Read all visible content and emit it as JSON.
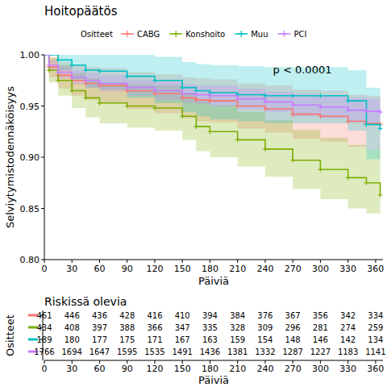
{
  "chart_data": {
    "type": "survival",
    "title": "Hoitopäätös",
    "legend_title": "Ositteet",
    "legend": "top",
    "annotation": "p < 0.0001",
    "xlabel": "Päiviä",
    "ylabel": "Selviytymistodennäköisyys",
    "x": [
      0,
      5,
      15,
      30,
      45,
      60,
      90,
      120,
      150,
      165,
      180,
      210,
      240,
      270,
      300,
      330,
      350,
      365
    ],
    "xlim": [
      0,
      368
    ],
    "xticks": [
      0,
      30,
      60,
      90,
      120,
      150,
      180,
      210,
      240,
      270,
      300,
      330,
      360
    ],
    "ylim": [
      0.8,
      1.0
    ],
    "yticks": [
      {
        "value": 0.8,
        "label": "0.80"
      },
      {
        "value": 0.85,
        "label": "0.85"
      },
      {
        "value": 0.9,
        "label": "0.90"
      },
      {
        "value": 0.95,
        "label": "0.95"
      },
      {
        "value": 1.0,
        "label": "1.00"
      }
    ],
    "grid": false,
    "marker": "plus",
    "line_style": "step",
    "series": [
      {
        "name": "CABG",
        "color": "#F8766D",
        "values": [
          1,
          0.988,
          0.98,
          0.975,
          0.972,
          0.97,
          0.965,
          0.962,
          0.958,
          0.956,
          0.955,
          0.95,
          0.947,
          0.942,
          0.94,
          0.935,
          0.933,
          0.932
        ],
        "lower": [
          1,
          0.978,
          0.967,
          0.96,
          0.956,
          0.953,
          0.947,
          0.943,
          0.938,
          0.935,
          0.934,
          0.928,
          0.924,
          0.918,
          0.915,
          0.91,
          0.907,
          0.906
        ],
        "upper": [
          1,
          0.998,
          0.993,
          0.99,
          0.988,
          0.987,
          0.983,
          0.981,
          0.978,
          0.977,
          0.976,
          0.972,
          0.97,
          0.966,
          0.965,
          0.961,
          0.96,
          0.959
        ],
        "at_risk": [
          461,
          446,
          436,
          428,
          416,
          410,
          394,
          384,
          376,
          367,
          356,
          342,
          334
        ]
      },
      {
        "name": "Konshoito",
        "color": "#7CAE00",
        "values": [
          1,
          0.985,
          0.975,
          0.965,
          0.958,
          0.953,
          0.95,
          0.948,
          0.94,
          0.93,
          0.925,
          0.917,
          0.908,
          0.897,
          0.888,
          0.88,
          0.875,
          0.863
        ],
        "lower": [
          1,
          0.973,
          0.96,
          0.948,
          0.939,
          0.933,
          0.929,
          0.926,
          0.917,
          0.906,
          0.9,
          0.891,
          0.881,
          0.869,
          0.859,
          0.85,
          0.845,
          0.832
        ],
        "upper": [
          1,
          0.997,
          0.99,
          0.982,
          0.977,
          0.973,
          0.971,
          0.97,
          0.963,
          0.955,
          0.951,
          0.944,
          0.936,
          0.927,
          0.919,
          0.912,
          0.907,
          0.896
        ],
        "at_risk": [
          434,
          408,
          397,
          388,
          366,
          347,
          335,
          328,
          309,
          296,
          281,
          274,
          259
        ]
      },
      {
        "name": "Muu",
        "color": "#00BFC4",
        "values": [
          1,
          1,
          0.995,
          0.99,
          0.985,
          0.984,
          0.979,
          0.975,
          0.968,
          0.965,
          0.963,
          0.961,
          0.96,
          0.96,
          0.96,
          0.955,
          0.932,
          0.928
        ],
        "lower": [
          1,
          1,
          0.985,
          0.976,
          0.968,
          0.966,
          0.958,
          0.953,
          0.944,
          0.94,
          0.937,
          0.935,
          0.933,
          0.933,
          0.933,
          0.926,
          0.898,
          0.893
        ],
        "upper": [
          1,
          1,
          1,
          1,
          1,
          1,
          1,
          0.998,
          0.993,
          0.991,
          0.99,
          0.989,
          0.988,
          0.988,
          0.988,
          0.985,
          0.968,
          0.965
        ],
        "at_risk": [
          189,
          180,
          177,
          175,
          171,
          167,
          163,
          159,
          154,
          148,
          146,
          142,
          134
        ]
      },
      {
        "name": "PCI",
        "color": "#C77CFF",
        "values": [
          1,
          0.99,
          0.983,
          0.978,
          0.975,
          0.972,
          0.968,
          0.965,
          0.962,
          0.961,
          0.96,
          0.957,
          0.954,
          0.951,
          0.949,
          0.946,
          0.945,
          0.944
        ],
        "lower": [
          1,
          0.985,
          0.977,
          0.971,
          0.968,
          0.964,
          0.96,
          0.956,
          0.953,
          0.952,
          0.95,
          0.947,
          0.944,
          0.94,
          0.938,
          0.934,
          0.933,
          0.932
        ],
        "upper": [
          1,
          0.995,
          0.989,
          0.985,
          0.982,
          0.98,
          0.976,
          0.974,
          0.971,
          0.97,
          0.97,
          0.967,
          0.964,
          0.962,
          0.96,
          0.958,
          0.957,
          0.956
        ],
        "at_risk": [
          1766,
          1694,
          1647,
          1595,
          1535,
          1491,
          1436,
          1381,
          1332,
          1287,
          1227,
          1183,
          1141
        ]
      }
    ],
    "risk_table": {
      "title": "Riskissä olevia",
      "x": [
        0,
        30,
        60,
        90,
        120,
        150,
        180,
        210,
        240,
        270,
        300,
        330,
        360
      ],
      "xlim": [
        0,
        368
      ],
      "xticks": [
        0,
        30,
        60,
        90,
        120,
        150,
        180,
        210,
        240,
        270,
        300,
        330,
        360
      ],
      "xlabel": "Päiviä",
      "ylabel": "Ositteet"
    }
  }
}
